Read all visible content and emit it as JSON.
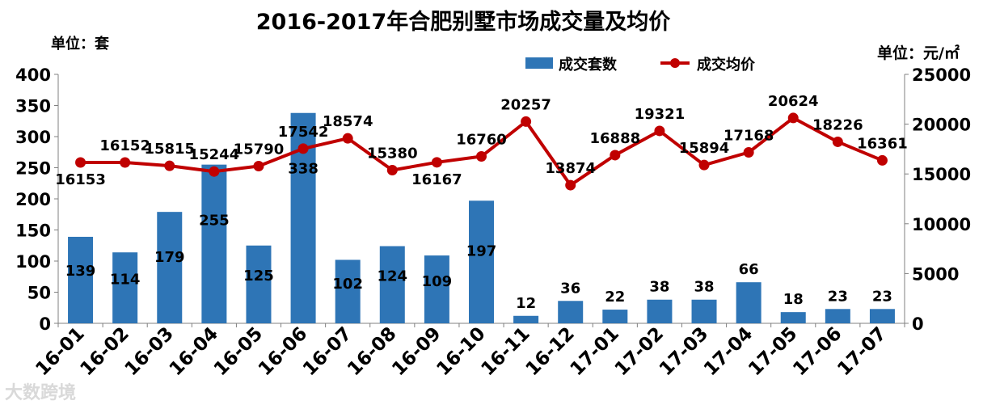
{
  "chart_data": {
    "type": "bar+line",
    "title": "2016-2017年合肥别墅市场成交量及均价",
    "left_unit": "单位：套",
    "right_unit": "单位：元/㎡",
    "categories": [
      "16-01",
      "16-02",
      "16-03",
      "16-04",
      "16-05",
      "16-06",
      "16-07",
      "16-08",
      "16-09",
      "16-10",
      "16-11",
      "16-12",
      "17-01",
      "17-02",
      "17-03",
      "17-04",
      "17-05",
      "17-06",
      "17-07"
    ],
    "series": [
      {
        "name": "成交套数",
        "type": "bar",
        "axis": "left",
        "color": "#2e75b6",
        "values": [
          139,
          114,
          179,
          255,
          125,
          338,
          102,
          124,
          109,
          197,
          12,
          36,
          22,
          38,
          38,
          66,
          18,
          23,
          23
        ]
      },
      {
        "name": "成交均价",
        "type": "line",
        "axis": "right",
        "color": "#c00000",
        "values": [
          16153,
          16152,
          15815,
          15244,
          15790,
          17542,
          18574,
          15380,
          16167,
          16760,
          20257,
          13874,
          16888,
          19321,
          15894,
          17168,
          20624,
          18226,
          16361
        ]
      }
    ],
    "y_left": {
      "min": 0,
      "max": 400,
      "ticks": [
        0,
        50,
        100,
        150,
        200,
        250,
        300,
        350,
        400
      ]
    },
    "y_right": {
      "min": 0,
      "max": 25000,
      "ticks": [
        0,
        5000,
        10000,
        15000,
        20000,
        25000
      ]
    },
    "legend_position": "top-right",
    "grid": false
  },
  "watermark": "大数跨境"
}
